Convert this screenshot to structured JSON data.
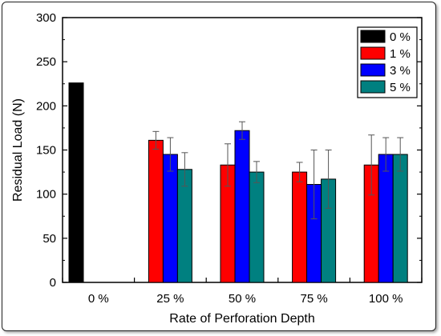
{
  "chart_data": {
    "type": "bar",
    "xlabel": "Rate of Perforation Depth",
    "ylabel": "Residual Load (N)",
    "ylim": [
      0,
      300
    ],
    "yticks": [
      0,
      50,
      100,
      150,
      200,
      250,
      300
    ],
    "categories": [
      "0 %",
      "25 %",
      "50 %",
      "75 %",
      "100 %"
    ],
    "legend_position": "top-right",
    "series": [
      {
        "name": "0 %",
        "color": "#000000",
        "values": [
          226,
          null,
          null,
          null,
          null
        ],
        "errors": [
          null,
          null,
          null,
          null,
          null
        ]
      },
      {
        "name": "1 %",
        "color": "#ff0000",
        "values": [
          null,
          161,
          133,
          125,
          133
        ],
        "errors": [
          null,
          10,
          24,
          11,
          34
        ]
      },
      {
        "name": "3 %",
        "color": "#0000ff",
        "values": [
          null,
          145,
          172,
          111,
          145
        ],
        "errors": [
          null,
          19,
          10,
          39,
          19
        ]
      },
      {
        "name": "5 %",
        "color": "#008080",
        "values": [
          null,
          128,
          125,
          117,
          145
        ],
        "errors": [
          null,
          19,
          12,
          33,
          19
        ]
      }
    ]
  }
}
